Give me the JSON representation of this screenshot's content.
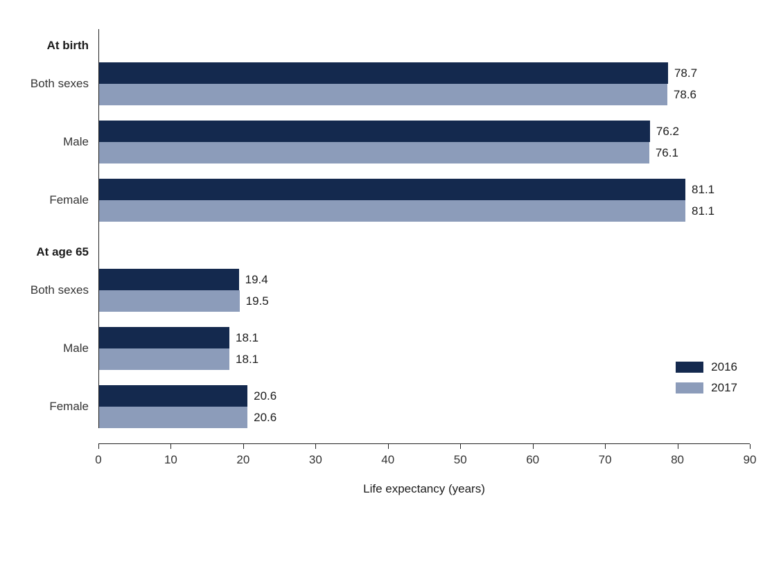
{
  "chart_data": {
    "type": "bar",
    "orientation": "horizontal",
    "title": "",
    "xlabel": "Life expectancy (years)",
    "ylabel": "",
    "xlim": [
      0,
      90
    ],
    "xticks": [
      0,
      10,
      20,
      30,
      40,
      50,
      60,
      70,
      80,
      90
    ],
    "grid": false,
    "legend_position": "right",
    "series": [
      {
        "name": "2016",
        "color": "#14294e"
      },
      {
        "name": "2017",
        "color": "#8c9cba"
      }
    ],
    "groups": [
      {
        "label": "At birth",
        "rows": [
          {
            "category": "Both sexes",
            "values": {
              "2016": 78.7,
              "2017": 78.6
            }
          },
          {
            "category": "Male",
            "values": {
              "2016": 76.2,
              "2017": 76.1
            }
          },
          {
            "category": "Female",
            "values": {
              "2016": 81.1,
              "2017": 81.1
            }
          }
        ]
      },
      {
        "label": "At age 65",
        "rows": [
          {
            "category": "Both sexes",
            "values": {
              "2016": 19.4,
              "2017": 19.5
            }
          },
          {
            "category": "Male",
            "values": {
              "2016": 18.1,
              "2017": 18.1
            }
          },
          {
            "category": "Female",
            "values": {
              "2016": 20.6,
              "2017": 20.6
            }
          }
        ]
      }
    ]
  }
}
